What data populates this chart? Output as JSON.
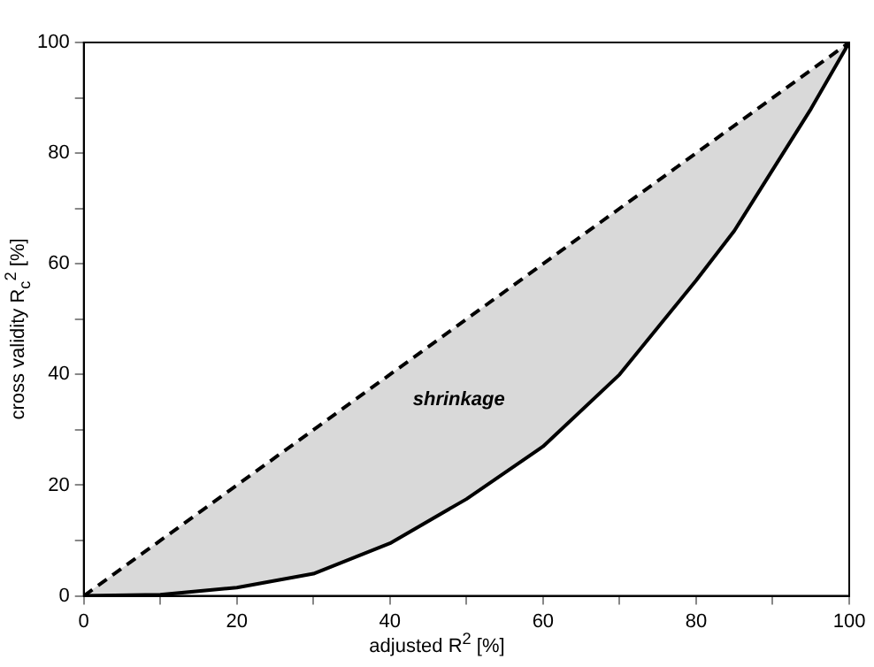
{
  "chart_data": {
    "type": "line",
    "xlabel": "adjusted R$^{2}$ [%]",
    "ylabel": "cross validity R$_{c}$$^{2}$ [%]",
    "annotations": [
      "shrinkage"
    ],
    "series": [
      {
        "color": "#000000",
        "line_style": "dashed",
        "x": [
          0,
          100
        ],
        "values": [
          0,
          100
        ]
      },
      {
        "color": "#000000",
        "line_style": "solid",
        "x": [
          0,
          10,
          20,
          30,
          40,
          50,
          60,
          70,
          80,
          85,
          90,
          95,
          100
        ],
        "values": [
          0,
          0.2,
          1.5,
          4,
          9.5,
          17.5,
          27,
          40,
          57,
          66,
          77,
          88,
          100
        ],
        "lower": [
          0,
          0.2,
          1.5,
          4,
          9.5,
          17.5,
          27,
          40,
          57,
          66,
          77,
          88,
          100
        ],
        "upper": [
          0,
          10,
          20,
          30,
          40,
          50,
          60,
          70,
          80,
          85,
          90,
          95,
          100
        ]
      }
    ],
    "xlim": [
      0,
      100
    ],
    "ylim": [
      0,
      100
    ],
    "xticks": [
      0,
      {
        "value": 10,
        "label": null
      },
      20,
      {
        "value": 30,
        "label": null
      },
      40,
      {
        "value": 50,
        "label": null
      },
      60,
      {
        "value": 70,
        "label": null
      },
      80,
      {
        "value": 90,
        "label": null
      },
      100
    ],
    "yticks": [
      0,
      {
        "value": 10,
        "label": null
      },
      20,
      {
        "value": 30,
        "label": null
      },
      40,
      {
        "value": 50,
        "label": null
      },
      60,
      {
        "value": 70,
        "label": null
      },
      80,
      {
        "value": 90,
        "label": null
      },
      100
    ],
    "grid": false,
    "legend": false,
    "marker": "none"
  }
}
